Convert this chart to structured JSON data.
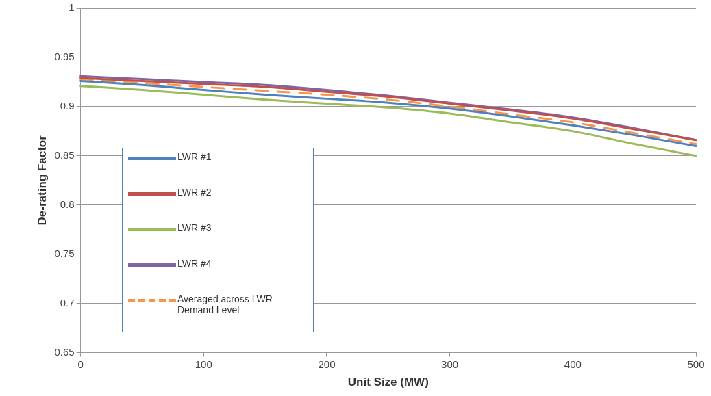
{
  "chart_data": {
    "type": "line",
    "xlabel": "Unit Size (MW)",
    "ylabel": "De-rating Factor",
    "x": [
      0,
      50,
      100,
      150,
      200,
      250,
      300,
      350,
      400,
      450,
      500
    ],
    "series": [
      {
        "name": "LWR #1",
        "color": "#4f81bd",
        "values": [
          0.926,
          0.922,
          0.917,
          0.912,
          0.908,
          0.904,
          0.898,
          0.89,
          0.881,
          0.871,
          0.86
        ]
      },
      {
        "name": "LWR #2",
        "color": "#c0504d",
        "values": [
          0.929,
          0.926,
          0.923,
          0.92,
          0.915,
          0.91,
          0.903,
          0.896,
          0.888,
          0.877,
          0.866
        ]
      },
      {
        "name": "LWR #3",
        "color": "#9bbb59",
        "values": [
          0.921,
          0.917,
          0.912,
          0.907,
          0.903,
          0.899,
          0.893,
          0.884,
          0.875,
          0.862,
          0.85
        ]
      },
      {
        "name": "LWR #4",
        "color": "#8064a2",
        "values": [
          0.931,
          0.928,
          0.925,
          0.922,
          0.917,
          0.911,
          0.904,
          0.897,
          0.889,
          0.878,
          0.866
        ]
      },
      {
        "name": "Averaged across LWR Demand Level",
        "color": "#f79646",
        "line_style": "dashed",
        "values": [
          0.928,
          0.924,
          0.92,
          0.916,
          0.912,
          0.907,
          0.9,
          0.892,
          0.884,
          0.873,
          0.862
        ]
      }
    ],
    "xlim": [
      0,
      500
    ],
    "xticks": [
      0,
      100,
      200,
      300,
      400,
      500
    ],
    "ylim": [
      0.65,
      1
    ],
    "yticks": [
      0.65,
      0.7,
      0.75,
      0.8,
      0.85,
      0.9,
      0.95,
      1
    ],
    "grid": "y",
    "legend": "left",
    "marker": "none",
    "line_style": "solid"
  }
}
